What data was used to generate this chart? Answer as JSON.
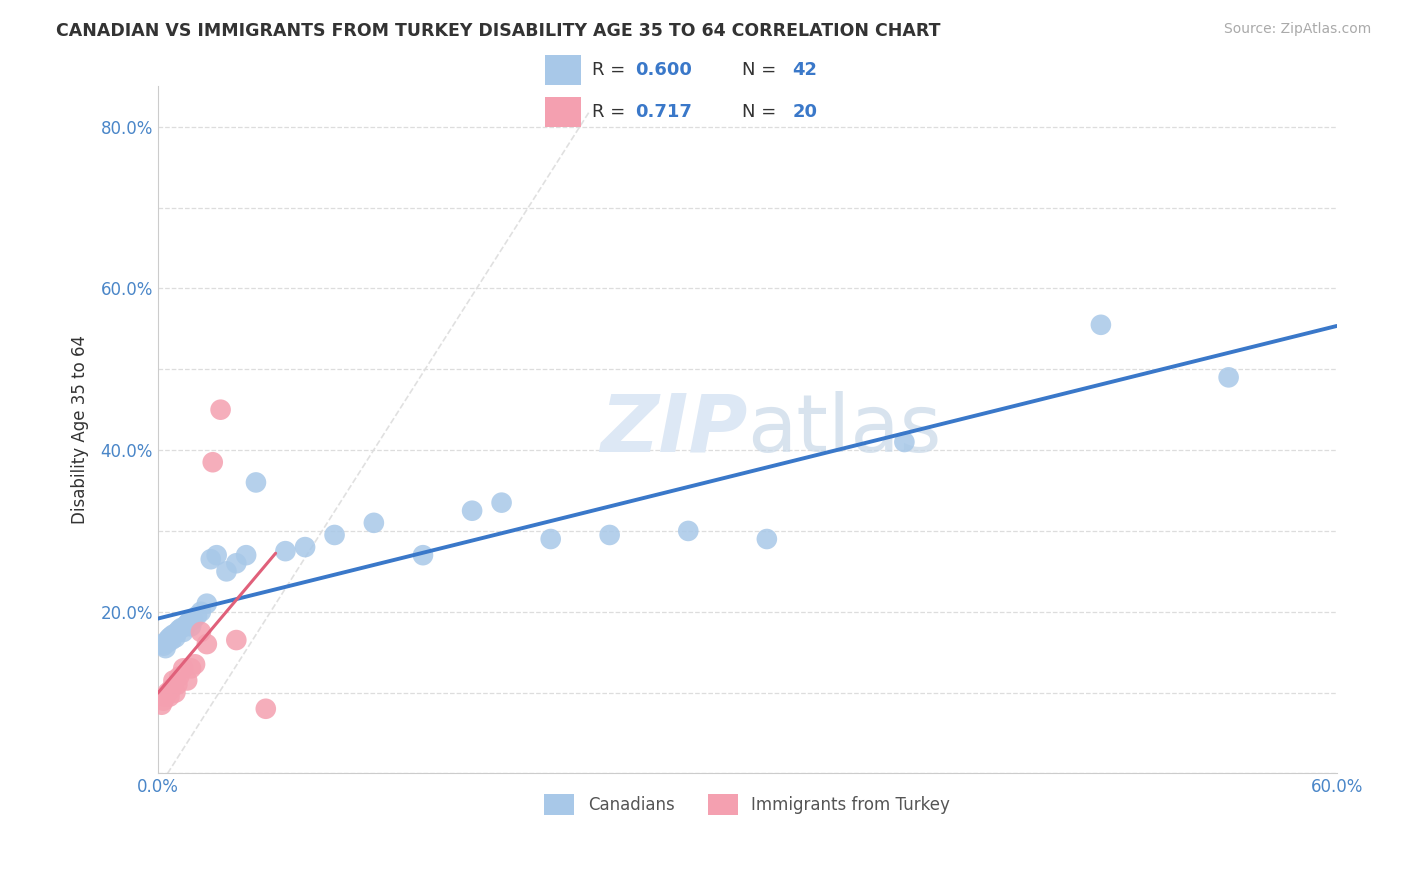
{
  "title": "CANADIAN VS IMMIGRANTS FROM TURKEY DISABILITY AGE 35 TO 64 CORRELATION CHART",
  "source": "Source: ZipAtlas.com",
  "ylabel": "Disability Age 35 to 64",
  "xlim": [
    0.0,
    0.6
  ],
  "ylim": [
    0.0,
    0.85
  ],
  "legend_r_canadian": "0.600",
  "legend_n_canadian": "42",
  "legend_r_turkey": "0.717",
  "legend_n_turkey": "20",
  "canadian_color": "#a8c8e8",
  "turkey_color": "#f4a0b0",
  "canadian_line_color": "#3a78c9",
  "turkey_line_color": "#e0607a",
  "diag_line_color": "#dddddd",
  "watermark_color": "#dde8f5",
  "background_color": "#ffffff",
  "grid_color": "#dddddd",
  "canadians_x": [
    0.002,
    0.003,
    0.004,
    0.005,
    0.005,
    0.006,
    0.007,
    0.007,
    0.008,
    0.009,
    0.01,
    0.011,
    0.012,
    0.013,
    0.014,
    0.015,
    0.016,
    0.017,
    0.018,
    0.02,
    0.022,
    0.025,
    0.027,
    0.03,
    0.035,
    0.04,
    0.045,
    0.05,
    0.065,
    0.075,
    0.09,
    0.11,
    0.135,
    0.16,
    0.175,
    0.2,
    0.23,
    0.27,
    0.31,
    0.38,
    0.48,
    0.545
  ],
  "canadians_y": [
    0.16,
    0.158,
    0.155,
    0.162,
    0.165,
    0.168,
    0.17,
    0.165,
    0.172,
    0.168,
    0.175,
    0.178,
    0.18,
    0.175,
    0.182,
    0.185,
    0.188,
    0.182,
    0.19,
    0.195,
    0.2,
    0.21,
    0.265,
    0.27,
    0.25,
    0.26,
    0.27,
    0.36,
    0.275,
    0.28,
    0.295,
    0.31,
    0.27,
    0.325,
    0.335,
    0.29,
    0.295,
    0.3,
    0.29,
    0.41,
    0.555,
    0.49
  ],
  "turkey_x": [
    0.002,
    0.003,
    0.004,
    0.005,
    0.006,
    0.007,
    0.008,
    0.009,
    0.01,
    0.011,
    0.013,
    0.015,
    0.017,
    0.019,
    0.022,
    0.025,
    0.028,
    0.032,
    0.04,
    0.055
  ],
  "turkey_y": [
    0.085,
    0.09,
    0.095,
    0.1,
    0.095,
    0.105,
    0.115,
    0.1,
    0.11,
    0.12,
    0.13,
    0.115,
    0.13,
    0.135,
    0.175,
    0.16,
    0.385,
    0.45,
    0.165,
    0.08
  ]
}
